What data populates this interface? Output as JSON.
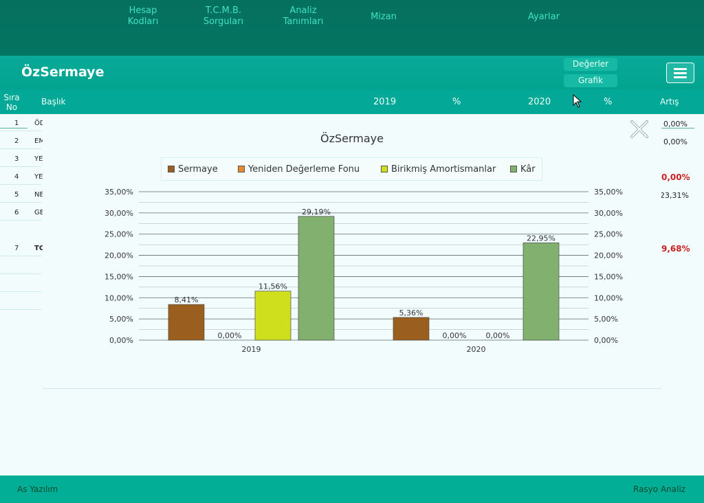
{
  "nav": {
    "items": [
      {
        "line1": "Hesap",
        "line2": "Kodları"
      },
      {
        "line1": "T.C.M.B.",
        "line2": "Sorguları"
      },
      {
        "line1": "Analiz",
        "line2": "Tanımları"
      },
      {
        "line1": "Mizan",
        "line2": ""
      },
      {
        "line1": "Ayarlar",
        "line2": ""
      }
    ]
  },
  "page": {
    "title": "ÖzSermaye",
    "values_button": "Değerler",
    "chart_button": "Grafik"
  },
  "table": {
    "headers": {
      "sira_line1": "Sıra",
      "sira_line2": "No",
      "baslik": "Başlık",
      "y2019": "2019",
      "pct1": "%",
      "y2020": "2020",
      "pct2": "%",
      "artis": "Artış"
    },
    "rows": [
      {
        "no": "1",
        "title": "ÖD",
        "artis": "0,00%"
      },
      {
        "no": "2",
        "title": "EM",
        "artis": "0,00%"
      },
      {
        "no": "3",
        "title": "YE",
        "artis": ""
      },
      {
        "no": "4",
        "title": "YE",
        "artis": "0,00%"
      },
      {
        "no": "5",
        "title": "NE",
        "artis": "23,31%"
      },
      {
        "no": "6",
        "title": "GE",
        "artis": ""
      },
      {
        "no": "7",
        "title": "TO",
        "artis": "9,68%"
      }
    ]
  },
  "chart_data": {
    "type": "bar",
    "title": "ÖzSermaye",
    "categories": [
      "2019",
      "2020"
    ],
    "series": [
      {
        "name": "Sermaye",
        "color": "#9a5f1e",
        "values": [
          8.41,
          5.36
        ],
        "labels": [
          "8,41%",
          "5,36%"
        ]
      },
      {
        "name": "Yeniden Değerleme Fonu",
        "color": "#e8892a",
        "values": [
          0.0,
          0.0
        ],
        "labels": [
          "0,00%",
          "0,00%"
        ]
      },
      {
        "name": "Birikmiş Amortismanlar",
        "color": "#cfdf1d",
        "values": [
          11.56,
          0.0
        ],
        "labels": [
          "11,56%",
          "0,00%"
        ]
      },
      {
        "name": "Kâr",
        "color": "#82b06f",
        "values": [
          29.19,
          22.95
        ],
        "labels": [
          "29,19%",
          "22,95%"
        ]
      }
    ],
    "ylim": [
      0,
      35
    ],
    "yticks": [
      "0,00%",
      "5,00%",
      "10,00%",
      "15,00%",
      "20,00%",
      "25,00%",
      "30,00%",
      "35,00%"
    ],
    "legend_position": "top",
    "grid": true,
    "dual_y_axis": true
  },
  "footer": {
    "left": "As Yazılım",
    "right": "Rasyo Analiz"
  },
  "colors": {
    "nav_bg": "#06705e",
    "title_bg": "#02a48f",
    "accent_text": "#3fe3c3",
    "negative_red": "#cc1f1f"
  }
}
